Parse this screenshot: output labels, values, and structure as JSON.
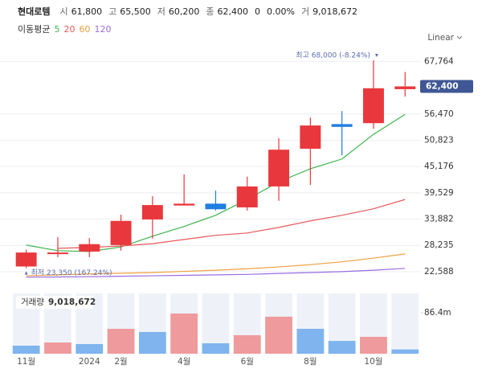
{
  "header": {
    "name": "현대로템",
    "items": [
      {
        "label": "시",
        "value": "61,800"
      },
      {
        "label": "고",
        "value": "65,500"
      },
      {
        "label": "저",
        "value": "60,200"
      },
      {
        "label": "종",
        "value": "62,400"
      }
    ],
    "change": "0",
    "change_pct": "0.00%",
    "volume_label": "거",
    "volume_value": "9,018,672"
  },
  "chart_data": {
    "type": "candlestick",
    "ma_title": "이동평균",
    "scale_mode": "Linear",
    "categories": [
      "11월",
      null,
      "2024",
      "2월",
      null,
      "4월",
      null,
      "6월",
      null,
      "8월",
      null,
      "10월",
      null
    ],
    "open": [
      23700,
      26400,
      26900,
      28300,
      33800,
      36800,
      37200,
      36400,
      40900,
      49000,
      54300,
      54500,
      61800
    ],
    "high": [
      27300,
      30000,
      29800,
      34850,
      38800,
      43500,
      40000,
      43000,
      51300,
      55700,
      57100,
      68000,
      65500
    ],
    "low": [
      23350,
      25700,
      25700,
      27100,
      29700,
      36800,
      35700,
      35700,
      37800,
      41200,
      47600,
      53300,
      60200
    ],
    "close": [
      26700,
      26700,
      28500,
      33500,
      36900,
      37200,
      36000,
      40900,
      48800,
      54000,
      53700,
      62000,
      62400
    ],
    "up_color": "#e8383d",
    "down_color": "#1f7fe0",
    "ylim": [
      20500,
      70600
    ],
    "yticks": [
      {
        "value": 22588,
        "label": "22,588"
      },
      {
        "value": 28235,
        "label": "28,235"
      },
      {
        "value": 33882,
        "label": "33,882"
      },
      {
        "value": 39529,
        "label": "39,529"
      },
      {
        "value": 45176,
        "label": "45,176"
      },
      {
        "value": 50823,
        "label": "50,823"
      },
      {
        "value": 56470,
        "label": "56,470"
      },
      {
        "value": 67764,
        "label": "67,764"
      }
    ],
    "grid": true,
    "last_price_label": "62,400",
    "last_price_color": "#3f5794",
    "high_label": "최고 68,000 (-8.24%)",
    "low_label": "최저 23,350 (167.24%)",
    "annotation_color": "#5a6ea8",
    "series": [
      {
        "name": "5",
        "color": "#3cb54a",
        "values": [
          28300,
          27100,
          26900,
          27900,
          30200,
          32300,
          34700,
          38100,
          41900,
          44700,
          46800,
          52100,
          56400
        ]
      },
      {
        "name": "20",
        "color": "#e8585a",
        "values": [
          null,
          27600,
          27800,
          28100,
          28600,
          29500,
          30400,
          30900,
          32100,
          33500,
          34700,
          36100,
          38100
        ]
      },
      {
        "name": "60",
        "color": "#f0a040",
        "values": [
          21700,
          21900,
          22100,
          22250,
          22400,
          22650,
          22900,
          23200,
          23600,
          24100,
          24700,
          25500,
          26400
        ]
      },
      {
        "name": "120",
        "color": "#9a6ce0",
        "values": [
          21400,
          21450,
          21500,
          21600,
          21700,
          21800,
          21900,
          22000,
          22200,
          22400,
          22600,
          22900,
          23300
        ]
      }
    ],
    "volume": {
      "title": "거래량",
      "total_label": "9,018,672",
      "values": [
        17,
        23.7,
        20.3,
        52.5,
        45.8,
        84.7,
        22,
        39,
        78,
        52.5,
        27,
        35.6,
        9.0
      ],
      "colors": [
        "#7fb4ee",
        "#ef9a9c",
        "#7fb4ee",
        "#ef9a9c",
        "#7fb4ee",
        "#ef9a9c",
        "#7fb4ee",
        "#ef9a9c",
        "#ef9a9c",
        "#7fb4ee",
        "#7fb4ee",
        "#ef9a9c",
        "#7fb4ee"
      ],
      "lane_color": "#eef2f8",
      "ylim": [
        0,
        127
      ],
      "yticks": [
        {
          "value": 86.4,
          "label": "86.4m"
        }
      ]
    }
  }
}
